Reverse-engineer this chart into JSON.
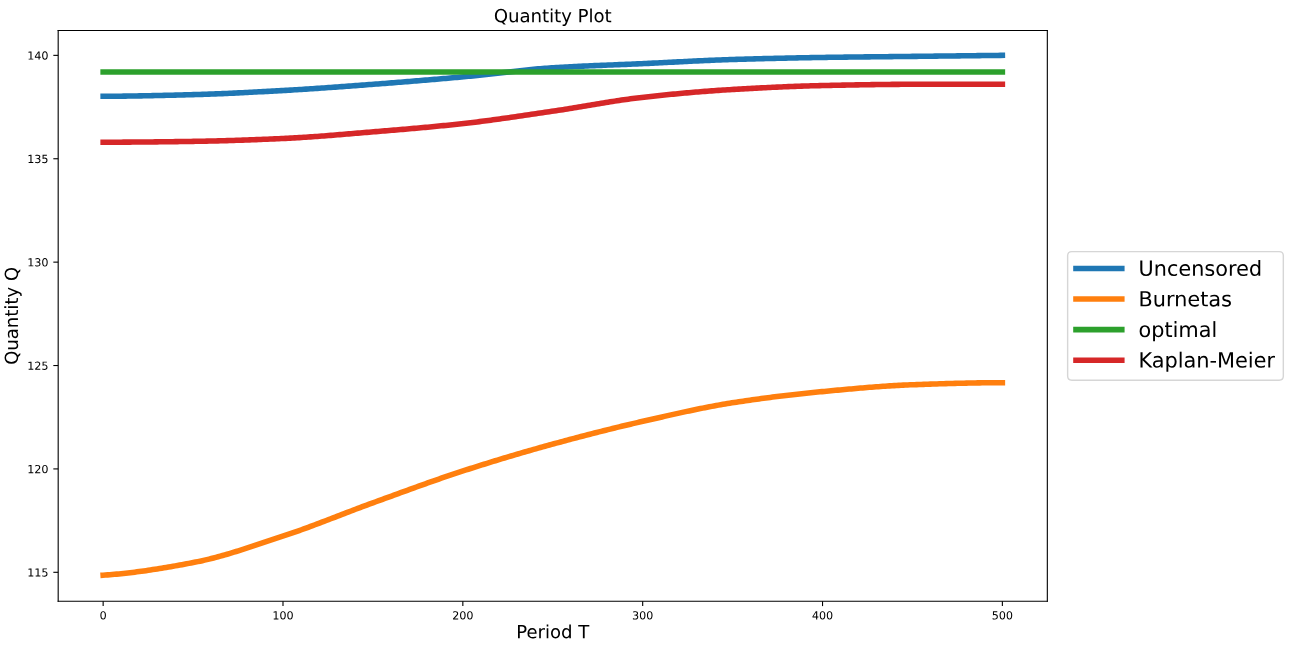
{
  "chart_data": {
    "type": "line",
    "title": "Quantity Plot",
    "xlabel": "Period T",
    "ylabel": "Quantity Q",
    "x": [
      0,
      50,
      100,
      150,
      200,
      250,
      300,
      350,
      400,
      450,
      500
    ],
    "series": [
      {
        "name": "Uncensored",
        "color": "#1f77b4",
        "values": [
          138.02,
          138.1,
          138.3,
          138.6,
          138.96,
          139.4,
          139.6,
          139.8,
          139.9,
          139.95,
          140.0
        ]
      },
      {
        "name": "Burnetas",
        "color": "#ff7f0e",
        "values": [
          114.86,
          115.47,
          116.75,
          118.36,
          119.9,
          121.2,
          122.3,
          123.2,
          123.74,
          124.07,
          124.17
        ]
      },
      {
        "name": "optimal",
        "color": "#2ca02c",
        "values": [
          139.2,
          139.2,
          139.2,
          139.2,
          139.2,
          139.2,
          139.2,
          139.2,
          139.2,
          139.2,
          139.2
        ]
      },
      {
        "name": "Kaplan-Meier",
        "color": "#d62728",
        "values": [
          135.8,
          135.84,
          135.98,
          136.3,
          136.7,
          137.3,
          137.97,
          138.35,
          138.54,
          138.6,
          138.6
        ]
      }
    ],
    "xlim": [
      -25,
      525
    ],
    "ylim": [
      113.6,
      141.2
    ],
    "xticks": [
      0,
      100,
      200,
      300,
      400,
      500
    ],
    "yticks": [
      115,
      120,
      125,
      130,
      135,
      140
    ],
    "legend": "right",
    "grid": false,
    "marker": "none",
    "line_style": "solid"
  }
}
